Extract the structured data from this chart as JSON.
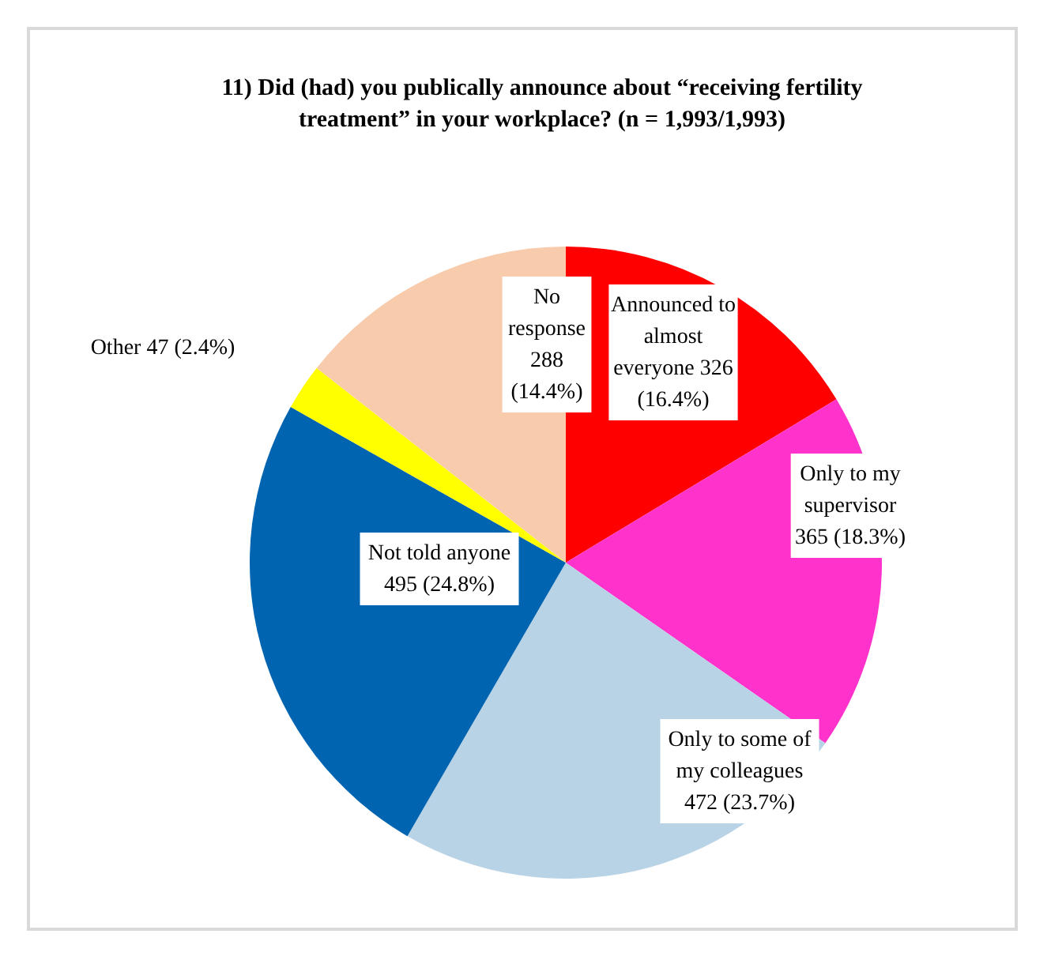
{
  "chart_data": {
    "type": "pie",
    "title": "11) Did (had) you publically announce about “receiving fertility treatment” in your workplace? (n = 1,993/1,993)",
    "categories": [
      "Announced to almost everyone",
      "Only to my supervisor",
      "Only to some of my colleagues",
      "Not told anyone",
      "Other",
      "No response"
    ],
    "values": [
      326,
      365,
      472,
      495,
      47,
      288
    ],
    "value_labels": [
      "326 (16.4%)",
      "365 (18.3%)",
      "472 (23.7%)",
      "495 (24.8%)",
      "47 (2.4%)",
      "288 (14.4%)"
    ],
    "colors": [
      "#ff0000",
      "#ff33cc",
      "#b9d3e6",
      "#0064b0",
      "#ffff00",
      "#f8cbad"
    ],
    "legend": false
  }
}
